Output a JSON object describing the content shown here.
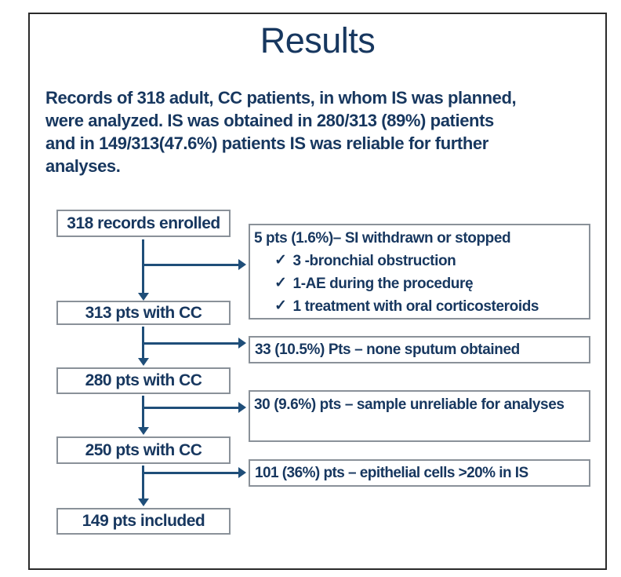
{
  "slide": {
    "title": "Results",
    "paragraph_lines": [
      "Records of 318 adult, CC patients, in whom IS was planned,",
      "were analyzed. IS was obtained in 280/313 (89%) patients",
      "and in 149/313(47.6%) patients IS was reliable for further",
      "analyses."
    ]
  },
  "flowchart": {
    "check_glyph": "✓",
    "left_boxes": [
      {
        "label": "318 records enrolled"
      },
      {
        "label": "313 pts with CC"
      },
      {
        "label": "280 pts with CC"
      },
      {
        "label": "250 pts with CC"
      },
      {
        "label": "149 pts included"
      }
    ],
    "right_boxes": [
      {
        "title": "5 pts (1.6%)– SI withdrawn or stopped",
        "items": [
          "3 -bronchial obstruction",
          "1-AE during the procedurę",
          "1 treatment with oral corticosteroids"
        ]
      },
      {
        "title": "33 (10.5%) Pts – none sputum obtained"
      },
      {
        "title": "30 (9.6%) pts – sample unreliable for analyses"
      },
      {
        "title": "101 (36%) pts – epithelial cells >20% in IS"
      }
    ]
  },
  "colors": {
    "text_navy": "#17375f",
    "arrow_blue": "#1f4e79",
    "box_border": "#8a9199",
    "frame_border": "#2a2a2a",
    "background": "#ffffff"
  }
}
